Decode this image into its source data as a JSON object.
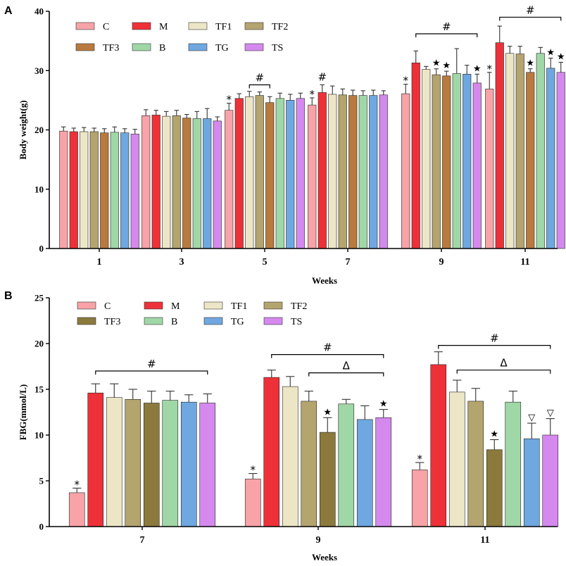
{
  "panels": [
    {
      "label": "A",
      "chart_data": {
        "type": "bar",
        "ylabel": "Body weight(g)",
        "xlabel": "Weeks",
        "ylim": [
          0,
          40
        ],
        "yticks": [
          0,
          10,
          20,
          30,
          40
        ],
        "categories": [
          "1",
          "3",
          "5",
          "7",
          "9",
          "11"
        ],
        "series": [
          {
            "name": "C",
            "color": "#f7a3a7",
            "values": [
              19.8,
              22.4,
              23.3,
              24.2,
              26.1,
              26.9
            ],
            "errors": [
              0.7,
              1.0,
              1.2,
              1.2,
              1.6,
              2.8
            ]
          },
          {
            "name": "M",
            "color": "#ee3138",
            "values": [
              19.7,
              22.5,
              25.3,
              26.3,
              31.3,
              34.7
            ],
            "errors": [
              0.6,
              0.8,
              0.8,
              1.3,
              2.0,
              2.8
            ]
          },
          {
            "name": "TF1",
            "color": "#ede6c6",
            "values": [
              19.7,
              22.3,
              25.6,
              26.0,
              30.2,
              32.9
            ],
            "errors": [
              0.7,
              0.8,
              0.9,
              1.4,
              0.5,
              1.2
            ]
          },
          {
            "name": "TF2",
            "color": "#b4a46e",
            "values": [
              19.7,
              22.4,
              25.8,
              25.9,
              29.3,
              32.8
            ],
            "errors": [
              0.6,
              0.9,
              0.6,
              1.0,
              1.0,
              1.3
            ]
          },
          {
            "name": "TF3",
            "color": "#b87a3e",
            "values": [
              19.5,
              22.0,
              24.6,
              25.8,
              29.1,
              29.7
            ],
            "errors": [
              0.7,
              0.6,
              1.0,
              0.9,
              0.8,
              0.6
            ]
          },
          {
            "name": "B",
            "color": "#a0d7a7",
            "values": [
              19.6,
              21.9,
              25.3,
              25.8,
              29.5,
              32.9
            ],
            "errors": [
              0.9,
              1.2,
              0.9,
              0.8,
              4.2,
              1.0
            ]
          },
          {
            "name": "TG",
            "color": "#6fa8e0",
            "values": [
              19.5,
              21.9,
              25.0,
              25.8,
              29.4,
              30.4
            ],
            "errors": [
              0.7,
              1.7,
              1.0,
              0.9,
              1.5,
              1.7
            ]
          },
          {
            "name": "TS",
            "color": "#d589ee",
            "values": [
              19.3,
              21.5,
              25.3,
              25.9,
              27.9,
              29.7
            ],
            "errors": [
              0.8,
              0.7,
              0.9,
              0.7,
              1.5,
              1.7
            ]
          }
        ],
        "annotations": [
          {
            "cat": 2,
            "series": 0,
            "text": "*"
          },
          {
            "cat": 3,
            "series": 0,
            "text": "*"
          },
          {
            "cat": 4,
            "series": 0,
            "text": "*"
          },
          {
            "cat": 5,
            "series": 0,
            "text": "*"
          },
          {
            "cat": 4,
            "series": 3,
            "text": "★"
          },
          {
            "cat": 4,
            "series": 4,
            "text": "★"
          },
          {
            "cat": 4,
            "series": 7,
            "text": "★"
          },
          {
            "cat": 5,
            "series": 4,
            "text": "★"
          },
          {
            "cat": 5,
            "series": 6,
            "text": "★"
          },
          {
            "cat": 5,
            "series": 7,
            "text": "★"
          }
        ],
        "hash_marks": [
          {
            "cat": 3,
            "series": 1,
            "text": "#"
          }
        ],
        "brackets": [
          {
            "cat": 2,
            "from": 2,
            "to": 4,
            "y": 27.6,
            "text": "#"
          },
          {
            "cat": 4,
            "from": 1,
            "to": 7,
            "y": 36.2,
            "text": "#"
          },
          {
            "cat": 5,
            "from": 1,
            "to": 7,
            "y": 39.0,
            "text": "#"
          }
        ]
      }
    },
    {
      "label": "B",
      "chart_data": {
        "type": "bar",
        "ylabel": "FBG(mmol/L)",
        "xlabel": "Weeks",
        "ylim": [
          0,
          25
        ],
        "yticks": [
          0,
          5,
          10,
          15,
          20,
          25
        ],
        "categories": [
          "7",
          "9",
          "11"
        ],
        "series": [
          {
            "name": "C",
            "color": "#f7a3a7",
            "values": [
              3.7,
              5.2,
              6.2
            ],
            "errors": [
              0.5,
              0.6,
              0.8
            ]
          },
          {
            "name": "M",
            "color": "#ee3138",
            "values": [
              14.6,
              16.3,
              17.7
            ],
            "errors": [
              1.0,
              0.8,
              1.4
            ]
          },
          {
            "name": "TF1",
            "color": "#ede6c6",
            "values": [
              14.1,
              15.3,
              14.7
            ],
            "errors": [
              1.5,
              1.1,
              1.3
            ]
          },
          {
            "name": "TF2",
            "color": "#b4a46e",
            "values": [
              13.9,
              13.7,
              13.7
            ],
            "errors": [
              1.1,
              1.1,
              1.4
            ]
          },
          {
            "name": "TF3",
            "color": "#8b7a3c",
            "values": [
              13.5,
              10.3,
              8.4
            ],
            "errors": [
              1.3,
              1.6,
              1.1
            ]
          },
          {
            "name": "B",
            "color": "#a0d7a7",
            "values": [
              13.8,
              13.4,
              13.6
            ],
            "errors": [
              1.0,
              0.5,
              1.2
            ]
          },
          {
            "name": "TG",
            "color": "#6fa8e0",
            "values": [
              13.6,
              11.7,
              9.6
            ],
            "errors": [
              0.8,
              1.5,
              1.7
            ]
          },
          {
            "name": "TS",
            "color": "#d589ee",
            "values": [
              13.5,
              11.9,
              10.0
            ],
            "errors": [
              1.0,
              0.9,
              1.8
            ]
          }
        ],
        "annotations": [
          {
            "cat": 0,
            "series": 0,
            "text": "*"
          },
          {
            "cat": 1,
            "series": 0,
            "text": "*"
          },
          {
            "cat": 2,
            "series": 0,
            "text": "*"
          },
          {
            "cat": 1,
            "series": 4,
            "text": "★"
          },
          {
            "cat": 1,
            "series": 7,
            "text": "★"
          },
          {
            "cat": 2,
            "series": 4,
            "text": "★"
          },
          {
            "cat": 2,
            "series": 6,
            "text": "▽"
          },
          {
            "cat": 2,
            "series": 7,
            "text": "▽"
          }
        ],
        "hash_marks": [],
        "brackets": [
          {
            "cat": 0,
            "from": 1,
            "to": 7,
            "y": 17.0,
            "text": "#"
          },
          {
            "cat": 1,
            "from": 1,
            "to": 7,
            "y": 18.8,
            "text": "#"
          },
          {
            "cat": 1,
            "from": 3,
            "to": 7,
            "y": 16.8,
            "text": "Δ"
          },
          {
            "cat": 2,
            "from": 1,
            "to": 7,
            "y": 19.8,
            "text": "#"
          },
          {
            "cat": 2,
            "from": 2,
            "to": 7,
            "y": 17.1,
            "text": "Δ"
          }
        ]
      }
    }
  ]
}
